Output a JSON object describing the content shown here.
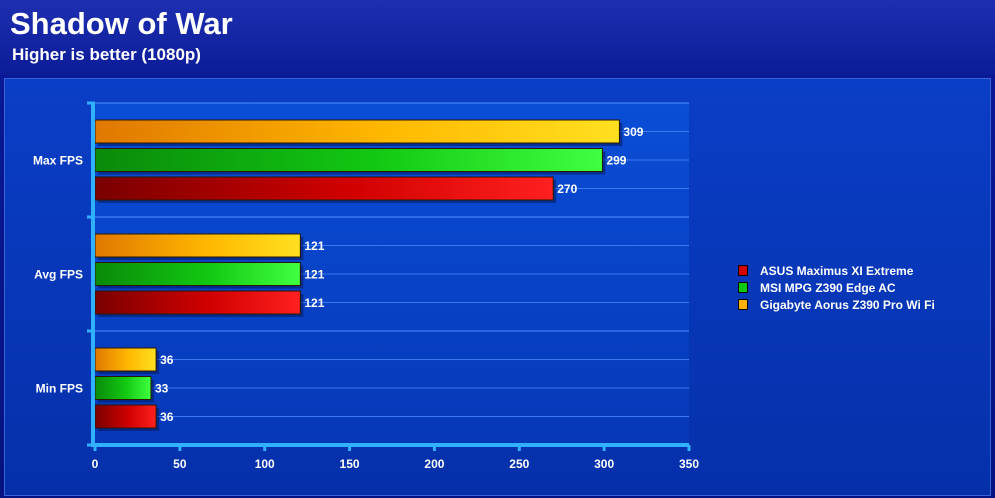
{
  "header": {
    "title": "Shadow of War",
    "subtitle": "Higher is better (1080p)"
  },
  "chart_data": {
    "type": "bar",
    "orientation": "horizontal",
    "categories": [
      "Max FPS",
      "Avg FPS",
      "Min FPS"
    ],
    "series": [
      {
        "name": "ASUS Maximus XI Extreme",
        "values": [
          270,
          121,
          36
        ],
        "color": "#d40000"
      },
      {
        "name": "MSI MPG Z390 Edge AC",
        "values": [
          299,
          121,
          33
        ],
        "color": "#10c810"
      },
      {
        "name": "Gigabyte Aorus Z390 Pro Wi Fi",
        "values": [
          309,
          121,
          36
        ],
        "color": "#ffc000"
      }
    ],
    "xlim": [
      0,
      350
    ],
    "xticks": [
      "0",
      "50",
      "100",
      "150",
      "200",
      "250",
      "300",
      "350"
    ],
    "grid": true,
    "legend_position": "right"
  }
}
